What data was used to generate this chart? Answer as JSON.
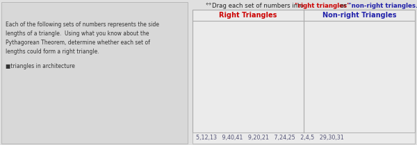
{
  "left_panel_text": [
    "Each of the following sets of numbers represents the side",
    "lengths of a triangle.  Using what you know about the",
    "Pythagorean Theorem, determine whether each set of",
    "lengths could form a right triangle."
  ],
  "left_subtext": "■triangles in architecture",
  "col1_header": "Right Triangles",
  "col2_header": "Non-right Triangles",
  "drag_items": "5,12,13   9,40,41   9,20,21   7,24,25   2,4,5   29,30,31",
  "bg_color": "#e0e0e0",
  "left_panel_bg": "#d8d8d8",
  "table_bg": "#ebebeb",
  "header1_color": "#cc0000",
  "header2_color": "#2222aa",
  "drag_text_color": "#555577",
  "left_text_color": "#333333",
  "right_color": "#cc0000",
  "non_right_color": "#2222aa",
  "border_color": "#aaaaaa",
  "resize_icon_color": "#666666",
  "instr_color": "#222222"
}
